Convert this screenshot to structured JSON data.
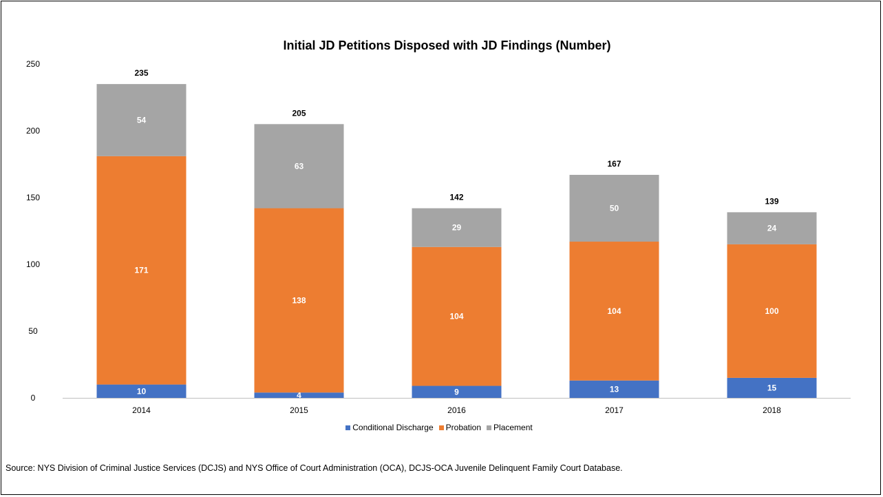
{
  "chart_data": {
    "type": "bar",
    "stacked": true,
    "title": "Initial JD Petitions Disposed with JD Findings (Number)",
    "categories": [
      "2014",
      "2015",
      "2016",
      "2017",
      "2018"
    ],
    "series": [
      {
        "name": "Conditional Discharge",
        "color": "#4472C4",
        "values": [
          10,
          4,
          9,
          13,
          15
        ]
      },
      {
        "name": "Probation",
        "color": "#ED7D31",
        "values": [
          171,
          138,
          104,
          104,
          100
        ]
      },
      {
        "name": "Placement",
        "color": "#A5A5A5",
        "values": [
          54,
          63,
          29,
          50,
          24
        ]
      }
    ],
    "totals": [
      "235",
      "205",
      "142",
      "167",
      "139"
    ],
    "ylim": [
      0,
      250
    ],
    "yticks": [
      "0",
      "50",
      "100",
      "150",
      "200",
      "250"
    ],
    "grid": false,
    "legend_position": "bottom"
  },
  "source_note": "Source: NYS Division of Criminal Justice Services (DCJS) and NYS Office of Court Administration (OCA), DCJS-OCA Juvenile Delinquent Family Court Database."
}
